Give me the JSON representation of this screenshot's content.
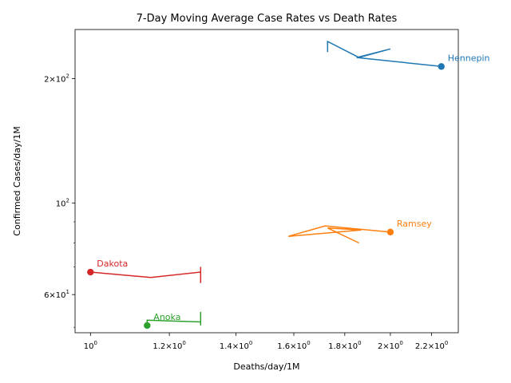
{
  "chart_data": {
    "type": "line",
    "title": "7-Day Moving Average Case Rates vs Death Rates",
    "xlabel": "Deaths/day/1M",
    "ylabel": "Confirmed Cases/day/1M",
    "xscale": "log",
    "yscale": "log",
    "xlim": [
      0.965,
      2.34
    ],
    "ylim": [
      48.5,
      263
    ],
    "grid": false,
    "legend": "none",
    "x_ticks": [
      {
        "value": 1.0,
        "label": "10",
        "sup": "0"
      },
      {
        "value": 1.2,
        "label": "1.2×10",
        "sup": "0"
      },
      {
        "value": 1.4,
        "label": "1.4×10",
        "sup": "0"
      },
      {
        "value": 1.6,
        "label": "1.6×10",
        "sup": "0"
      },
      {
        "value": 1.8,
        "label": "1.8×10",
        "sup": "0"
      },
      {
        "value": 2.0,
        "label": "2×10",
        "sup": "0"
      },
      {
        "value": 2.2,
        "label": "2.2×10",
        "sup": "0"
      }
    ],
    "y_ticks": [
      {
        "value": 60,
        "label": "6×10",
        "sup": "1"
      },
      {
        "value": 100,
        "label": "10",
        "sup": "2"
      },
      {
        "value": 200,
        "label": "2×10",
        "sup": "2"
      }
    ],
    "y_minor_ticks": [
      50,
      70,
      80,
      90
    ],
    "series": [
      {
        "name": "Hennepin",
        "color": "#1f77b4",
        "x": [
          1.73,
          1.73,
          1.86,
          2.0,
          1.85,
          2.25
        ],
        "y": [
          232,
          246,
          225,
          236,
          225,
          214
        ]
      },
      {
        "name": "Ramsey",
        "color": "#ff7f0e",
        "x": [
          1.86,
          1.73,
          1.87,
          1.58,
          1.72,
          2.0
        ],
        "y": [
          80,
          87,
          86,
          83,
          88,
          85
        ]
      },
      {
        "name": "Dakota",
        "color": "#d62728",
        "x": [
          1.29,
          1.29,
          1.29,
          1.15,
          1.0
        ],
        "y": [
          64,
          70,
          68,
          66,
          68
        ]
      },
      {
        "name": "Anoka",
        "color": "#2ca02c",
        "x": [
          1.29,
          1.29,
          1.29,
          1.14,
          1.14,
          1.14
        ],
        "y": [
          50.5,
          54.5,
          51.5,
          52,
          51.5,
          50.5
        ]
      }
    ]
  }
}
